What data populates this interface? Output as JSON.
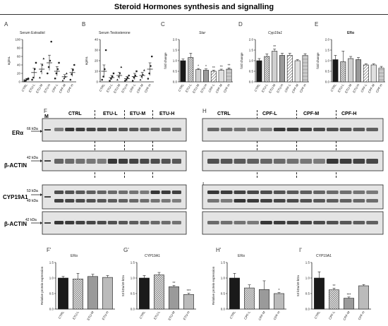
{
  "figure_title": "Steroid Hormones synthesis and signalling",
  "panels": {
    "A": {
      "letter": "A",
      "title": "Serum Estradiol",
      "ylabel": "ng/mL"
    },
    "B": {
      "letter": "B",
      "title": "Serum Testosterone",
      "ylabel": "ng/mL"
    },
    "C": {
      "letter": "C",
      "title": "Star",
      "ylabel": "fold change"
    },
    "D": {
      "letter": "D",
      "title": "Cyp19a1",
      "ylabel": "fold change"
    },
    "E": {
      "letter": "E",
      "title": "ERα",
      "ylabel": "fold change"
    },
    "F": {
      "letter": "F"
    },
    "G": {
      "letter": "G"
    },
    "H": {
      "letter": "H"
    },
    "I": {
      "letter": "I"
    },
    "F2": {
      "letter": "F'",
      "title": "ERα",
      "ylabel": "Relative protein expression"
    },
    "G2": {
      "letter": "G'",
      "title": "CYP19A1",
      "ylabel": "53 kDa/49 kDa"
    },
    "H2": {
      "letter": "H'",
      "title": "ERα",
      "ylabel": "Relative protein expression"
    },
    "I2": {
      "letter": "I'",
      "title": "CYP19A1",
      "ylabel": "53 kDa/49 kDa"
    }
  },
  "blots": {
    "marker": "M",
    "left_groups": [
      "CTRL",
      "ETU-L",
      "ETU-M",
      "ETU-H"
    ],
    "right_groups": [
      "CTRL",
      "CPF-L",
      "CPF-M",
      "CPF-H"
    ],
    "era_label": "ERα",
    "era_kda": "66 kDa",
    "actin_label": "β-ACTIN",
    "actin_kda": "42 kDa",
    "cyp_label": "CYP19A1",
    "cyp_kda_top": "53 kDa",
    "cyp_kda_bottom": "49 kDa",
    "actin2_label": "β-ACTIN",
    "actin2_kda": "42 kDa"
  },
  "colors": {
    "black": "#1a1a1a",
    "grey": "#9a9a9a",
    "light": "#d0d0d0",
    "blot_bg": "#e4e4e4",
    "band": "#2a2a2a"
  },
  "chart_data": [
    {
      "id": "A",
      "type": "scatter",
      "title": "Serum Estradiol",
      "ylabel": "ng/mL",
      "ylim": [
        0,
        100
      ],
      "yticks": [
        0,
        20,
        40,
        60,
        80,
        100
      ],
      "categories": [
        "CTRL",
        "ETU-L",
        "ETU-M",
        "ETU-H",
        "CPF-L",
        "CPF-M",
        "CPF-H"
      ],
      "means": [
        5,
        22,
        30,
        45,
        25,
        12,
        22
      ],
      "sem": [
        3,
        10,
        12,
        18,
        11,
        5,
        9
      ],
      "points": [
        [
          2,
          3,
          6,
          8
        ],
        [
          5,
          10,
          30,
          45
        ],
        [
          10,
          25,
          40,
          55
        ],
        [
          20,
          35,
          50,
          95
        ],
        [
          8,
          20,
          30,
          45
        ],
        [
          3,
          8,
          12,
          20
        ],
        [
          5,
          18,
          28,
          40
        ]
      ]
    },
    {
      "id": "B",
      "type": "scatter",
      "title": "Serum Testosterone",
      "ylabel": "ng/mL",
      "ylim": [
        0,
        40
      ],
      "yticks": [
        0,
        10,
        20,
        30,
        40
      ],
      "categories": [
        "CTRL",
        "ETU-L",
        "ETU-M",
        "ETU-H",
        "CPF-L",
        "CPF-M",
        "CPF-H"
      ],
      "means": [
        10,
        4,
        6,
        3,
        5,
        6,
        12
      ],
      "sem": [
        6,
        2,
        3,
        2,
        3,
        3,
        6
      ],
      "points": [
        [
          2,
          5,
          12,
          30
        ],
        [
          1,
          3,
          5,
          8
        ],
        [
          2,
          5,
          8,
          14
        ],
        [
          1,
          2,
          4,
          6
        ],
        [
          1,
          4,
          6,
          10
        ],
        [
          2,
          5,
          7,
          11
        ],
        [
          3,
          8,
          15,
          24
        ]
      ]
    },
    {
      "id": "C",
      "type": "bar",
      "title": "Star",
      "ylabel": "fold change",
      "ylim": [
        0,
        2.0
      ],
      "yticks": [
        0.0,
        0.5,
        1.0,
        1.5,
        2.0
      ],
      "categories": [
        "CTRL",
        "ETU-L",
        "ETU-M",
        "ETU-H",
        "CPF-L",
        "CPF-M",
        "CPF-H"
      ],
      "values": [
        1.0,
        1.15,
        0.58,
        0.55,
        0.5,
        0.55,
        0.6
      ],
      "errors": [
        0.08,
        0.2,
        0.05,
        0.06,
        0.05,
        0.05,
        0.06
      ],
      "annotations": [
        "",
        "",
        "*",
        "*",
        "**",
        "**",
        "**"
      ]
    },
    {
      "id": "D",
      "type": "bar",
      "title": "Cyp19a1",
      "ylabel": "fold change",
      "ylim": [
        0,
        2.0
      ],
      "yticks": [
        0.0,
        0.5,
        1.0,
        1.5,
        2.0
      ],
      "categories": [
        "CTRL",
        "ETU-L",
        "ETU-M",
        "ETU-H",
        "CPF-L",
        "CPF-M",
        "CPF-H"
      ],
      "values": [
        1.0,
        1.2,
        1.45,
        1.25,
        1.25,
        1.0,
        1.25
      ],
      "errors": [
        0.1,
        0.12,
        0.1,
        0.1,
        0.1,
        0.05,
        0.08
      ],
      "annotations": [
        "",
        "",
        "**",
        "",
        "",
        "",
        ""
      ]
    },
    {
      "id": "E",
      "type": "bar",
      "title": "ERα",
      "ylabel": "fold change",
      "ylim": [
        0,
        2.0
      ],
      "yticks": [
        0.0,
        0.5,
        1.0,
        1.5,
        2.0
      ],
      "categories": [
        "CTRL",
        "ETU-L",
        "ETU-M",
        "ETU-H",
        "CPF-L",
        "CPF-M",
        "CPF-H"
      ],
      "values": [
        1.05,
        0.95,
        1.1,
        1.05,
        0.8,
        0.8,
        0.65
      ],
      "errors": [
        0.2,
        0.5,
        0.1,
        0.1,
        0.05,
        0.05,
        0.08
      ],
      "annotations": [
        "",
        "",
        "",
        "",
        "",
        "",
        ""
      ]
    },
    {
      "id": "F2",
      "type": "bar",
      "title": "ERα",
      "ylabel": "Relative protein expression",
      "ylim": [
        0,
        1.5
      ],
      "yticks": [
        0.0,
        0.5,
        1.0,
        1.5
      ],
      "categories": [
        "CTRL",
        "ETU-L",
        "ETU-M",
        "ETU-H"
      ],
      "values": [
        1.0,
        0.97,
        1.05,
        1.02
      ],
      "errors": [
        0.05,
        0.18,
        0.07,
        0.06
      ],
      "annotations": [
        "",
        "",
        "",
        ""
      ]
    },
    {
      "id": "G2",
      "type": "bar",
      "title": "CYP19A1",
      "ylabel": "53 kDa/49 kDa",
      "ylim": [
        0,
        1.5
      ],
      "yticks": [
        0.0,
        0.5,
        1.0,
        1.5
      ],
      "categories": [
        "CTRL",
        "ETU-L",
        "ETU-M",
        "ETU-H"
      ],
      "values": [
        1.0,
        1.1,
        0.72,
        0.47
      ],
      "errors": [
        0.08,
        0.08,
        0.04,
        0.04
      ],
      "annotations": [
        "",
        "",
        "**",
        "***"
      ]
    },
    {
      "id": "H2",
      "type": "bar",
      "title": "ERα",
      "ylabel": "Relative protein expression",
      "ylim": [
        0,
        1.5
      ],
      "yticks": [
        0.0,
        0.5,
        1.0,
        1.5
      ],
      "categories": [
        "CTRL",
        "CPF-L",
        "CPF-M",
        "CPF-H"
      ],
      "values": [
        1.0,
        0.68,
        0.63,
        0.5
      ],
      "errors": [
        0.15,
        0.1,
        0.28,
        0.03
      ],
      "annotations": [
        "",
        "",
        "",
        "*"
      ]
    },
    {
      "id": "I2",
      "type": "bar",
      "title": "CYP19A1",
      "ylabel": "53 kDa/49 kDa",
      "ylim": [
        0,
        1.5
      ],
      "yticks": [
        0.0,
        0.5,
        1.0,
        1.5
      ],
      "categories": [
        "CTRL",
        "CPF-L",
        "CPF-M",
        "CPF-H"
      ],
      "values": [
        1.0,
        0.62,
        0.35,
        0.75
      ],
      "errors": [
        0.2,
        0.05,
        0.04,
        0.04
      ],
      "annotations": [
        "",
        "**",
        "***",
        ""
      ]
    }
  ]
}
